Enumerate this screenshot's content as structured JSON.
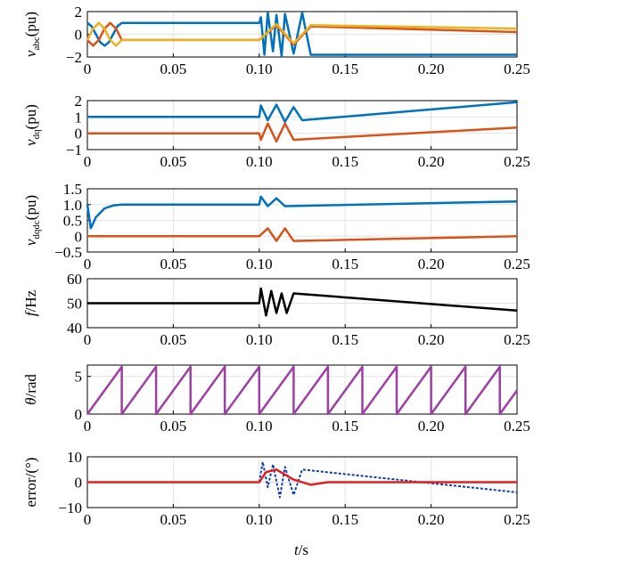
{
  "figure": {
    "xlabel_var": "t",
    "xlabel_unit": "/s"
  },
  "chart_data": [
    {
      "type": "line",
      "ylabel": {
        "var": "v",
        "sub": "abc",
        "unit": "(pu)"
      },
      "xlim": [
        0,
        0.25
      ],
      "ylim": [
        -2,
        2
      ],
      "yticks": [
        "2",
        "0",
        "−2"
      ],
      "xticks": [
        "0",
        "0.05",
        "0.10",
        "0.15",
        "0.20",
        "0.25"
      ],
      "grid": true,
      "series": [
        {
          "color": "#0072BD",
          "values": [
            [
              0,
              1
            ],
            [
              0.0025,
              0.707
            ],
            [
              0.005,
              0
            ],
            [
              0.0075,
              -0.707
            ],
            [
              0.01,
              -1
            ],
            [
              0.0125,
              -0.707
            ],
            [
              0.015,
              0
            ],
            [
              0.0175,
              0.707
            ],
            [
              0.02,
              1
            ],
            [
              0.1,
              1
            ],
            [
              0.101,
              1.5
            ],
            [
              0.103,
              -1.8
            ],
            [
              0.105,
              1.9
            ],
            [
              0.108,
              -1.5
            ],
            [
              0.11,
              1.7
            ],
            [
              0.113,
              -1.9
            ],
            [
              0.115,
              1.8
            ],
            [
              0.12,
              -1.7
            ],
            [
              0.125,
              1.9
            ],
            [
              0.13,
              -1.8
            ],
            [
              0.25,
              -1.8
            ]
          ]
        },
        {
          "color": "#D95319",
          "values": [
            [
              0,
              -0.5
            ],
            [
              0.0033,
              -1
            ],
            [
              0.0067,
              -0.5
            ],
            [
              0.01,
              0.5
            ],
            [
              0.0133,
              1
            ],
            [
              0.0167,
              0.5
            ],
            [
              0.02,
              -0.5
            ],
            [
              0.1,
              -0.5
            ],
            [
              0.11,
              0.8
            ],
            [
              0.12,
              -0.9
            ],
            [
              0.13,
              0.7
            ],
            [
              0.25,
              0.2
            ]
          ]
        },
        {
          "color": "#EDB120",
          "values": [
            [
              0,
              -0.5
            ],
            [
              0.0033,
              0.5
            ],
            [
              0.0067,
              1
            ],
            [
              0.01,
              0.5
            ],
            [
              0.0133,
              -0.5
            ],
            [
              0.0167,
              -1
            ],
            [
              0.02,
              -0.5
            ],
            [
              0.1,
              -0.5
            ],
            [
              0.11,
              0.9
            ],
            [
              0.12,
              -0.8
            ],
            [
              0.13,
              0.8
            ],
            [
              0.25,
              0.5
            ]
          ]
        }
      ]
    },
    {
      "type": "line",
      "ylabel": {
        "var": "v",
        "sub": "dq",
        "unit": "(pu)"
      },
      "xlim": [
        0,
        0.25
      ],
      "ylim": [
        -1,
        2
      ],
      "yticks": [
        "2",
        "1",
        "0",
        "−1"
      ],
      "xticks": [
        "0",
        "0.05",
        "0.10",
        "0.15",
        "0.20",
        "0.25"
      ],
      "grid": true,
      "series": [
        {
          "color": "#0072BD",
          "values": [
            [
              0,
              1
            ],
            [
              0.1,
              1
            ],
            [
              0.101,
              1.7
            ],
            [
              0.105,
              0.8
            ],
            [
              0.11,
              1.75
            ],
            [
              0.115,
              0.7
            ],
            [
              0.12,
              1.6
            ],
            [
              0.125,
              0.8
            ],
            [
              0.25,
              1.9
            ]
          ]
        },
        {
          "color": "#D95319",
          "values": [
            [
              0,
              0
            ],
            [
              0.1,
              0
            ],
            [
              0.101,
              -0.4
            ],
            [
              0.105,
              0.6
            ],
            [
              0.11,
              -0.5
            ],
            [
              0.115,
              0.6
            ],
            [
              0.12,
              -0.4
            ],
            [
              0.25,
              0.35
            ]
          ]
        }
      ]
    },
    {
      "type": "line",
      "ylabel": {
        "var": "v",
        "sub": "dqdc",
        "unit": "(pu)"
      },
      "xlim": [
        0,
        0.25
      ],
      "ylim": [
        -0.5,
        1.5
      ],
      "yticks": [
        "1.5",
        "1.0",
        "0.5",
        "0",
        "−0.5"
      ],
      "xticks": [
        "0",
        "0.05",
        "0.10",
        "0.15",
        "0.20",
        "0.25"
      ],
      "grid": true,
      "series": [
        {
          "color": "#0072BD",
          "values": [
            [
              0,
              1
            ],
            [
              0.002,
              0.25
            ],
            [
              0.005,
              0.6
            ],
            [
              0.01,
              0.88
            ],
            [
              0.015,
              0.97
            ],
            [
              0.02,
              1
            ],
            [
              0.1,
              1
            ],
            [
              0.101,
              1.25
            ],
            [
              0.105,
              0.95
            ],
            [
              0.11,
              1.2
            ],
            [
              0.115,
              0.95
            ],
            [
              0.25,
              1.1
            ]
          ]
        },
        {
          "color": "#D95319",
          "values": [
            [
              0,
              0
            ],
            [
              0.1,
              0
            ],
            [
              0.105,
              0.25
            ],
            [
              0.11,
              -0.15
            ],
            [
              0.115,
              0.25
            ],
            [
              0.12,
              -0.15
            ],
            [
              0.25,
              0
            ]
          ]
        }
      ]
    },
    {
      "type": "line",
      "ylabel": {
        "var": "f",
        "sub": "",
        "unit": "/Hz"
      },
      "xlim": [
        0,
        0.25
      ],
      "ylim": [
        40,
        60
      ],
      "yticks": [
        "60",
        "50",
        "40"
      ],
      "xticks": [
        "0",
        "0.05",
        "0.10",
        "0.15",
        "0.20",
        "0.25"
      ],
      "grid": true,
      "series": [
        {
          "color": "#000000",
          "values": [
            [
              0,
              50
            ],
            [
              0.1,
              50
            ],
            [
              0.101,
              56
            ],
            [
              0.104,
              45
            ],
            [
              0.107,
              55
            ],
            [
              0.11,
              46
            ],
            [
              0.113,
              54
            ],
            [
              0.116,
              46
            ],
            [
              0.12,
              54
            ],
            [
              0.25,
              47
            ]
          ]
        }
      ]
    },
    {
      "type": "line",
      "ylabel": {
        "var": "θ",
        "sub": "",
        "unit": "/rad"
      },
      "xlim": [
        0,
        0.25
      ],
      "ylim": [
        0,
        6.5
      ],
      "yticks": [
        "5",
        "0"
      ],
      "xticks": [
        "0",
        "0.05",
        "0.10",
        "0.15",
        "0.20",
        "0.25"
      ],
      "grid": true,
      "series": [
        {
          "color": "#9E3FA3",
          "values": [
            [
              0,
              0
            ],
            [
              0.02,
              6.28
            ],
            [
              0.02,
              0
            ],
            [
              0.04,
              6.28
            ],
            [
              0.04,
              0
            ],
            [
              0.06,
              6.28
            ],
            [
              0.06,
              0
            ],
            [
              0.08,
              6.28
            ],
            [
              0.08,
              0
            ],
            [
              0.1,
              6.28
            ],
            [
              0.1,
              0
            ],
            [
              0.12,
              6.28
            ],
            [
              0.12,
              0
            ],
            [
              0.14,
              6.28
            ],
            [
              0.14,
              0
            ],
            [
              0.16,
              6.28
            ],
            [
              0.16,
              0
            ],
            [
              0.18,
              6.28
            ],
            [
              0.18,
              0
            ],
            [
              0.2,
              6.28
            ],
            [
              0.2,
              0
            ],
            [
              0.22,
              6.28
            ],
            [
              0.22,
              0
            ],
            [
              0.24,
              6.28
            ],
            [
              0.24,
              0
            ],
            [
              0.25,
              3.14
            ]
          ]
        }
      ]
    },
    {
      "type": "line",
      "ylabel": {
        "var": "",
        "sub": "",
        "unit": "error/(°)"
      },
      "xlim": [
        0,
        0.25
      ],
      "ylim": [
        -10,
        10
      ],
      "yticks": [
        "10",
        "0",
        "−10"
      ],
      "xticks": [
        "0",
        "0.05",
        "0.10",
        "0.15",
        "0.20",
        "0.25"
      ],
      "grid": true,
      "series": [
        {
          "color": "#0B3FA8",
          "dashed": true,
          "values": [
            [
              0.1,
              0
            ],
            [
              0.102,
              8
            ],
            [
              0.105,
              -2
            ],
            [
              0.108,
              7
            ],
            [
              0.112,
              -6
            ],
            [
              0.115,
              6
            ],
            [
              0.12,
              -5
            ],
            [
              0.125,
              5
            ],
            [
              0.25,
              -4
            ]
          ]
        },
        {
          "color": "#E02020",
          "values": [
            [
              0,
              0
            ],
            [
              0.1,
              0
            ],
            [
              0.104,
              4
            ],
            [
              0.11,
              5
            ],
            [
              0.115,
              3
            ],
            [
              0.12,
              1
            ],
            [
              0.13,
              -1
            ],
            [
              0.14,
              0
            ],
            [
              0.25,
              0
            ]
          ]
        }
      ]
    }
  ]
}
